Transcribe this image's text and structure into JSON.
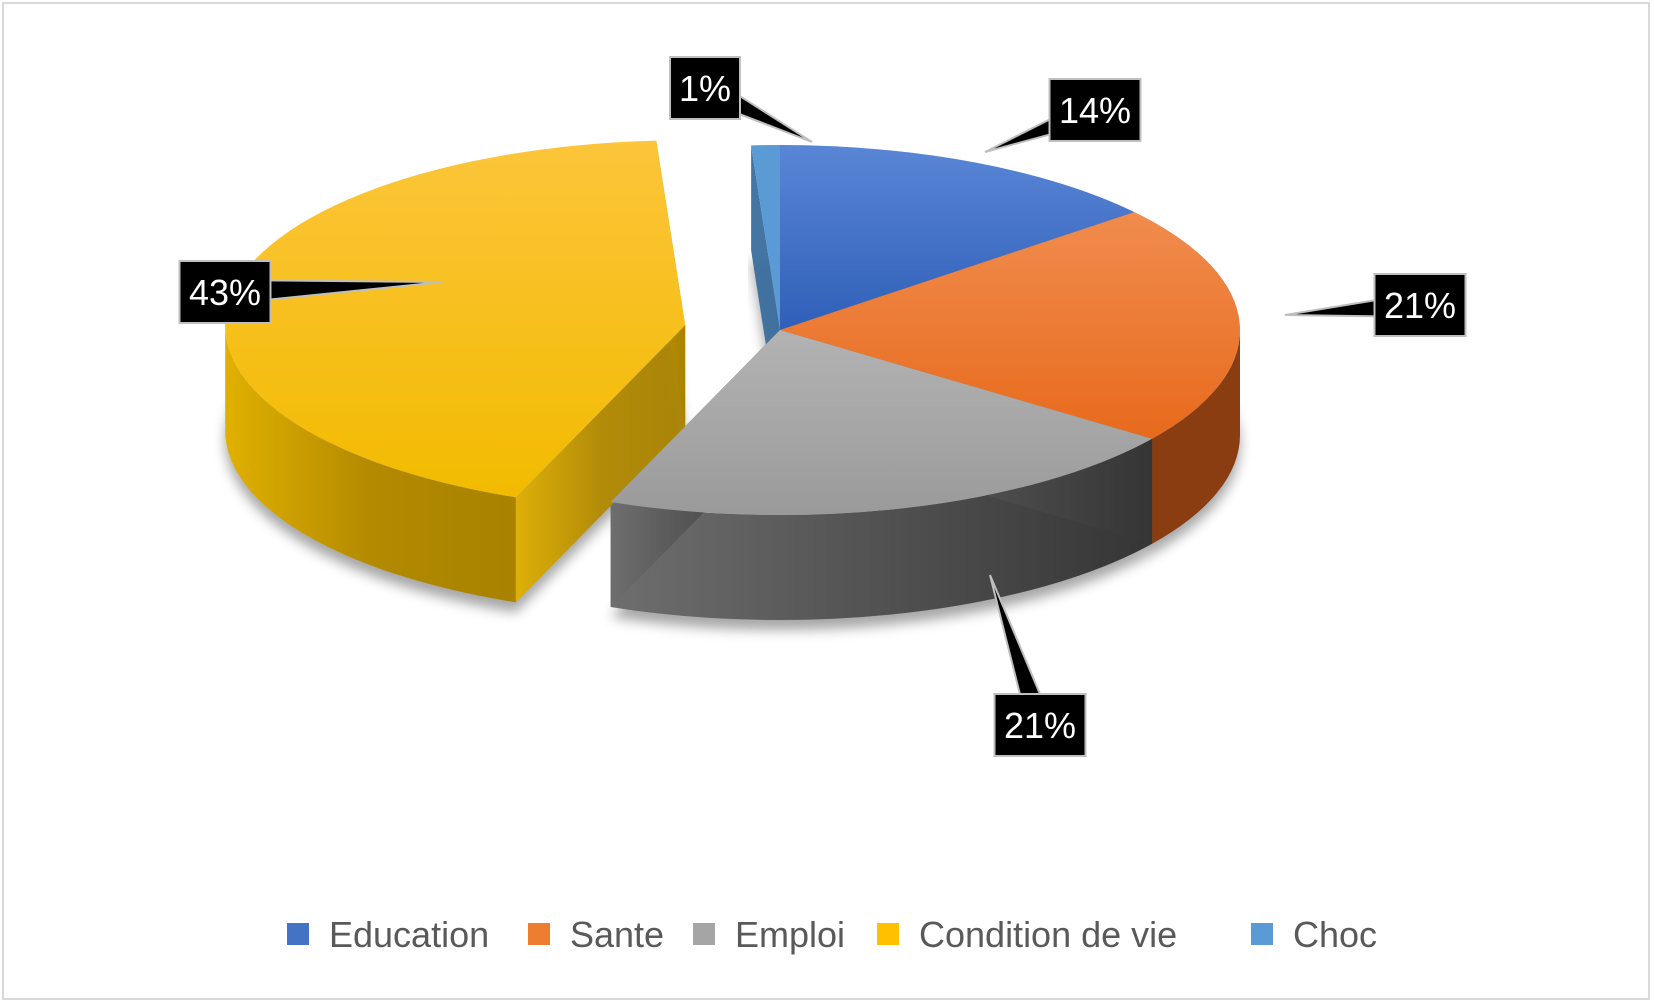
{
  "chart_data": {
    "type": "pie",
    "style": "3D exploded pie",
    "title": "",
    "categories": [
      "Education",
      "Sante",
      "Emploi",
      "Condition de vie",
      "Choc"
    ],
    "values": [
      14,
      21,
      21,
      43,
      1
    ],
    "data_labels": [
      "14%",
      "21%",
      "21%",
      "43%",
      "1%"
    ],
    "unit": "%",
    "colors": [
      "#4472C4",
      "#ED7D31",
      "#A5A5A5",
      "#FFC000",
      "#5B9BD5"
    ],
    "exploded": [
      "Condition de vie"
    ],
    "legend_position": "bottom"
  }
}
